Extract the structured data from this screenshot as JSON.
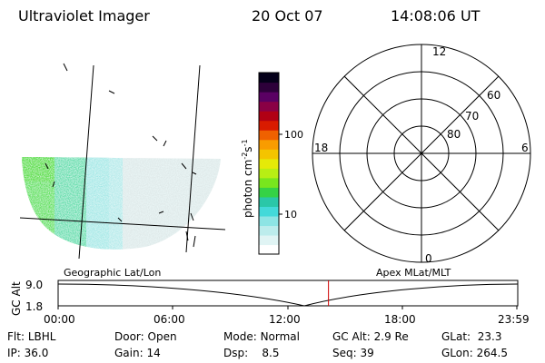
{
  "header": {
    "instrument": "Ultraviolet Imager",
    "date": "20 Oct 07",
    "time": "14:08:06 UT"
  },
  "panels": {
    "left_label": "Geographic Lat/Lon",
    "right_label": "Apex MLat/MLT"
  },
  "colorbar": {
    "unit": "photon cm",
    "unit_exp1": "-2",
    "unit_s": "s",
    "unit_exp2": "-1",
    "tick_100": "100",
    "tick_10": "10",
    "colors": [
      "#ffffff",
      "#e0f4f4",
      "#bcecec",
      "#8de4e4",
      "#43d9d9",
      "#2ac7a8",
      "#35d246",
      "#78e61e",
      "#b8ee14",
      "#e5ea08",
      "#f4c400",
      "#f99c00",
      "#ef6100",
      "#d91b00",
      "#b10014",
      "#8a0045",
      "#5a0063",
      "#2d003a",
      "#05001a"
    ]
  },
  "polar": {
    "mlt_top": "12",
    "mlt_left": "18",
    "mlt_right": "6",
    "mlt_bottom": "0",
    "lat_60": "60",
    "lat_70": "70",
    "lat_80": "80"
  },
  "timeline": {
    "ylabel": "GC Alt",
    "ytick_high": "9.0",
    "ytick_low": "1.8",
    "xticks": [
      "00:00",
      "06:00",
      "12:00",
      "18:00",
      "23:59"
    ],
    "current_time_hours": 14.135
  },
  "status": {
    "flt_label": "Flt:",
    "flt_value": "LBHL",
    "ip_label": "IP:",
    "ip_value": "36.0",
    "door_label": "Door:",
    "door_value": "Open",
    "gain_label": "Gain:",
    "gain_value": "14",
    "mode_label": "Mode:",
    "mode_value": "Normal",
    "dsp_label": "Dsp:",
    "dsp_value": "8.5",
    "gcalt_label": "GC Alt:",
    "gcalt_value": "2.9 Re",
    "seq_label": "Seq:",
    "seq_value": "39",
    "glat_label": "GLat:",
    "glat_value": "23.3",
    "glon_label": "GLon:",
    "glon_value": "264.5"
  }
}
